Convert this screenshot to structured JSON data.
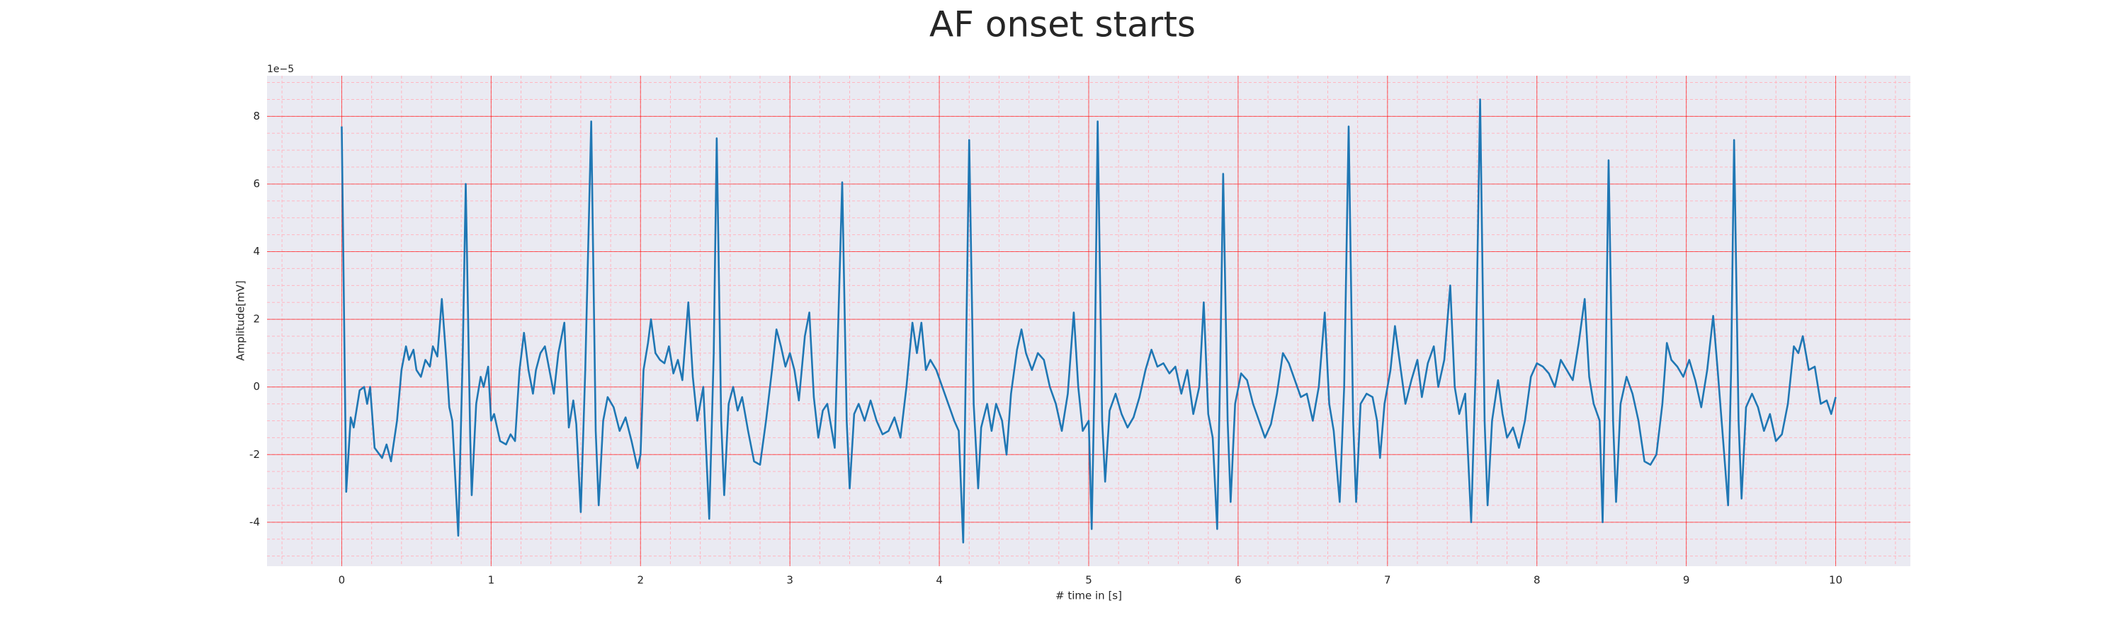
{
  "chart_data": {
    "type": "line",
    "title": "AF onset starts",
    "xlabel": "# time in [s]",
    "ylabel": "Amplitude[mV]",
    "y_offset_text": "1e−5",
    "x": [
      0,
      0.03,
      0.06,
      0.08,
      0.12,
      0.15,
      0.17,
      0.19,
      0.22,
      0.27,
      0.3,
      0.33,
      0.37,
      0.4,
      0.43,
      0.45,
      0.48,
      0.5,
      0.53,
      0.56,
      0.59,
      0.61,
      0.64,
      0.67,
      0.7,
      0.72,
      0.74,
      0.78,
      0.81,
      0.83,
      0.86,
      0.87,
      0.9,
      0.93,
      0.95,
      0.98,
      1.0,
      1.02,
      1.06,
      1.1,
      1.13,
      1.16,
      1.19,
      1.22,
      1.25,
      1.28,
      1.3,
      1.33,
      1.36,
      1.39,
      1.42,
      1.45,
      1.49,
      1.52,
      1.55,
      1.57,
      1.6,
      1.63,
      1.67,
      1.7,
      1.72,
      1.75,
      1.78,
      1.82,
      1.86,
      1.9,
      1.94,
      1.98,
      2.0,
      2.02,
      2.05,
      2.07,
      2.1,
      2.13,
      2.16,
      2.19,
      2.22,
      2.25,
      2.28,
      2.32,
      2.35,
      2.38,
      2.42,
      2.46,
      2.49,
      2.51,
      2.54,
      2.56,
      2.59,
      2.62,
      2.65,
      2.68,
      2.72,
      2.76,
      2.8,
      2.84,
      2.88,
      2.91,
      2.94,
      2.97,
      3.0,
      3.03,
      3.06,
      3.1,
      3.13,
      3.16,
      3.19,
      3.22,
      3.25,
      3.3,
      3.35,
      3.38,
      3.4,
      3.43,
      3.46,
      3.5,
      3.54,
      3.58,
      3.62,
      3.66,
      3.7,
      3.74,
      3.78,
      3.82,
      3.85,
      3.88,
      3.91,
      3.94,
      3.98,
      4.02,
      4.06,
      4.1,
      4.13,
      4.16,
      4.2,
      4.23,
      4.26,
      4.28,
      4.32,
      4.35,
      4.38,
      4.42,
      4.45,
      4.48,
      4.52,
      4.55,
      4.58,
      4.62,
      4.66,
      4.7,
      4.74,
      4.78,
      4.82,
      4.86,
      4.9,
      4.93,
      4.96,
      5.0,
      5.02,
      5.04,
      5.06,
      5.09,
      5.11,
      5.14,
      5.18,
      5.22,
      5.26,
      5.3,
      5.34,
      5.38,
      5.42,
      5.46,
      5.5,
      5.54,
      5.58,
      5.62,
      5.66,
      5.7,
      5.74,
      5.77,
      5.8,
      5.83,
      5.86,
      5.88,
      5.9,
      5.93,
      5.95,
      5.98,
      6.02,
      6.06,
      6.1,
      6.14,
      6.18,
      6.22,
      6.26,
      6.3,
      6.34,
      6.38,
      6.42,
      6.46,
      6.5,
      6.54,
      6.58,
      6.61,
      6.64,
      6.68,
      6.71,
      6.74,
      6.77,
      6.79,
      6.82,
      6.86,
      6.9,
      6.93,
      6.95,
      6.98,
      7.02,
      7.05,
      7.08,
      7.12,
      7.16,
      7.2,
      7.23,
      7.27,
      7.31,
      7.34,
      7.38,
      7.42,
      7.45,
      7.48,
      7.52,
      7.56,
      7.59,
      7.62,
      7.65,
      7.67,
      7.7,
      7.74,
      7.77,
      7.8,
      7.84,
      7.88,
      7.92,
      7.96,
      8.0,
      8.04,
      8.08,
      8.12,
      8.16,
      8.2,
      8.24,
      8.28,
      8.32,
      8.35,
      8.38,
      8.42,
      8.44,
      8.46,
      8.48,
      8.51,
      8.53,
      8.56,
      8.6,
      8.64,
      8.68,
      8.72,
      8.76,
      8.8,
      8.84,
      8.87,
      8.9,
      8.94,
      8.98,
      9.02,
      9.06,
      9.1,
      9.14,
      9.18,
      9.21,
      9.24,
      9.28,
      9.3,
      9.32,
      9.35,
      9.37,
      9.4,
      9.44,
      9.48,
      9.52,
      9.56,
      9.6,
      9.64,
      9.68,
      9.72,
      9.75,
      9.78,
      9.82,
      9.86,
      9.9,
      9.94,
      9.97,
      10.0
    ],
    "series": [
      {
        "color": "#1f77b4",
        "values": [
          7.7,
          -3.1,
          -0.9,
          -1.2,
          -0.1,
          0,
          -0.5,
          0,
          -1.8,
          -2.1,
          -1.7,
          -2.2,
          -1.0,
          0.5,
          1.2,
          0.8,
          1.1,
          0.5,
          0.3,
          0.8,
          0.6,
          1.2,
          0.9,
          2.6,
          0.8,
          -0.6,
          -1.0,
          -4.4,
          1.0,
          6.0,
          -1.5,
          -3.2,
          -0.5,
          0.3,
          0,
          0.6,
          -1.0,
          -0.8,
          -1.6,
          -1.7,
          -1.4,
          -1.6,
          0.5,
          1.6,
          0.5,
          -0.2,
          0.5,
          1.0,
          1.2,
          0.5,
          -0.2,
          1.0,
          1.9,
          -1.2,
          -0.4,
          -1.1,
          -3.7,
          0.5,
          7.85,
          -1.3,
          -3.5,
          -1.0,
          -0.3,
          -0.6,
          -1.3,
          -0.9,
          -1.6,
          -2.4,
          -2.0,
          0.5,
          1.3,
          2.0,
          1.0,
          0.8,
          0.7,
          1.2,
          0.4,
          0.8,
          0.2,
          2.5,
          0.3,
          -1.0,
          0,
          -3.9,
          1.0,
          7.35,
          -1.0,
          -3.2,
          -0.5,
          0,
          -0.7,
          -0.3,
          -1.3,
          -2.2,
          -2.3,
          -1.0,
          0.5,
          1.7,
          1.2,
          0.6,
          1.0,
          0.5,
          -0.4,
          1.5,
          2.2,
          -0.3,
          -1.5,
          -0.7,
          -0.5,
          -1.8,
          6.05,
          -1.0,
          -3.0,
          -0.8,
          -0.5,
          -1.0,
          -0.4,
          -1.0,
          -1.4,
          -1.3,
          -0.9,
          -1.5,
          0,
          1.9,
          1.0,
          1.9,
          0.5,
          0.8,
          0.5,
          0,
          -0.5,
          -1.0,
          -1.3,
          -4.6,
          7.3,
          -0.5,
          -3.0,
          -1.2,
          -0.5,
          -1.3,
          -0.5,
          -1.0,
          -2.0,
          -0.2,
          1.1,
          1.7,
          1.0,
          0.5,
          1.0,
          0.8,
          0,
          -0.5,
          -1.3,
          -0.2,
          2.2,
          0,
          -1.3,
          -1.0,
          -4.2,
          0.5,
          7.85,
          -1.0,
          -2.8,
          -0.7,
          -0.2,
          -0.8,
          -1.2,
          -0.9,
          -0.3,
          0.5,
          1.1,
          0.6,
          0.7,
          0.4,
          0.6,
          -0.2,
          0.5,
          -0.8,
          0,
          2.5,
          -0.8,
          -1.5,
          -4.2,
          0.5,
          6.3,
          -1.0,
          -3.4,
          -0.5,
          0.4,
          0.2,
          -0.5,
          -1.0,
          -1.5,
          -1.1,
          -0.2,
          1.0,
          0.7,
          0.2,
          -0.3,
          -0.2,
          -1.0,
          0,
          2.2,
          -0.5,
          -1.3,
          -3.4,
          0,
          7.7,
          -1.0,
          -3.4,
          -0.5,
          -0.2,
          -0.3,
          -1.0,
          -2.1,
          -0.5,
          0.5,
          1.8,
          0.8,
          -0.5,
          0.2,
          0.8,
          -0.3,
          0.7,
          1.2,
          0,
          0.8,
          3.0,
          0,
          -0.8,
          -0.2,
          -4.0,
          0.5,
          8.5,
          -1.0,
          -3.5,
          -1.0,
          0.2,
          -0.8,
          -1.5,
          -1.2,
          -1.8,
          -1.0,
          0.3,
          0.7,
          0.6,
          0.4,
          0,
          0.8,
          0.5,
          0.2,
          1.3,
          2.6,
          0.3,
          -0.5,
          -1.0,
          -4.0,
          0.5,
          6.7,
          -1.0,
          -3.4,
          -0.5,
          0.3,
          -0.2,
          -1.0,
          -2.2,
          -2.3,
          -2.0,
          -0.5,
          1.3,
          0.8,
          0.6,
          0.3,
          0.8,
          0.2,
          -0.6,
          0.5,
          2.1,
          0.5,
          -1.2,
          -3.5,
          0.5,
          7.3,
          -1.0,
          -3.3,
          -0.6,
          -0.2,
          -0.6,
          -1.3,
          -0.8,
          -1.6,
          -1.4,
          -0.5,
          1.2,
          1.0,
          1.5,
          0.5,
          0.6,
          -0.5,
          -0.4,
          -0.8,
          -0.3
        ]
      }
    ],
    "xlim": [
      -0.5,
      10.5
    ],
    "ylim": [
      -5.3,
      9.2
    ],
    "xticks": [
      0,
      1,
      2,
      3,
      4,
      5,
      6,
      7,
      8,
      9,
      10
    ],
    "yticks": [
      -4,
      -2,
      0,
      2,
      4,
      6,
      8
    ],
    "grid": true,
    "grid_color": "#ff0000",
    "minor_grid": true,
    "minor_grid_color": "#ffb6c1",
    "background": "#eaeaf2"
  }
}
